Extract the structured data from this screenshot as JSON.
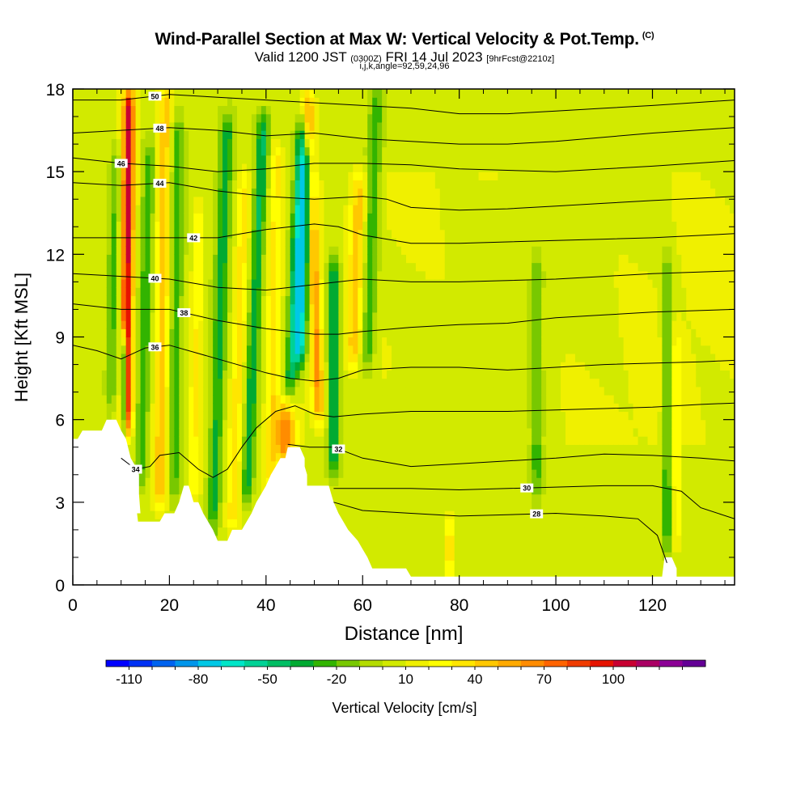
{
  "header": {
    "title": "Wind-Parallel Section at Max W: Vertical Velocity & Pot.Temp.",
    "copyright": "(C)",
    "valid_prefix": "Valid 1200 JST",
    "valid_utc": "(0300Z)",
    "valid_date": "FRI 14 Jul 2023",
    "forecast": "[9hrFcst@2210z]",
    "indices": "i,j,k,angle=92,59,24,96"
  },
  "colorbar": {
    "label": "Vertical Velocity [cm/s]",
    "tick_labels": [
      "-110",
      "-80",
      "-50",
      "-20",
      "10",
      "40",
      "70",
      "100"
    ],
    "colors": [
      "#0000ff",
      "#0032f5",
      "#0064f0",
      "#0096eb",
      "#00c8e6",
      "#00e6c8",
      "#00d296",
      "#00be64",
      "#00aa32",
      "#32b400",
      "#78c800",
      "#b4dc00",
      "#d2ea00",
      "#f0f000",
      "#ffff00",
      "#ffe600",
      "#ffc800",
      "#ffaa00",
      "#ff8c00",
      "#ff6400",
      "#f03c00",
      "#e61400",
      "#c80032",
      "#aa0064",
      "#8c0096",
      "#640096"
    ]
  },
  "chart_data": {
    "type": "heatmap",
    "xlabel": "Distance [nm]",
    "ylabel": "Height [Kft MSL]",
    "xlim": [
      0,
      137
    ],
    "ylim": [
      0,
      18
    ],
    "x_ticks": [
      "0",
      "20",
      "40",
      "60",
      "80",
      "100",
      "120"
    ],
    "y_ticks": [
      "0",
      "3",
      "6",
      "9",
      "12",
      "15",
      "18"
    ],
    "field": "Vertical Velocity [cm/s]",
    "contour_field": "Potential temperature",
    "terrain": [
      [
        0,
        5.3
      ],
      [
        1,
        5.3
      ],
      [
        2,
        5.6
      ],
      [
        3,
        5.6
      ],
      [
        6,
        5.6
      ],
      [
        7,
        6.0
      ],
      [
        9,
        6.0
      ],
      [
        10,
        5.6
      ],
      [
        11,
        5.3
      ],
      [
        12,
        4.6
      ],
      [
        13,
        4.3
      ],
      [
        13.7,
        4.0
      ],
      [
        13.7,
        3.3
      ],
      [
        14,
        2.6
      ],
      [
        13.3,
        2.6
      ],
      [
        13.5,
        2.3
      ],
      [
        18,
        2.3
      ],
      [
        19,
        2.6
      ],
      [
        21,
        2.6
      ],
      [
        22,
        3.0
      ],
      [
        23,
        3.6
      ],
      [
        24,
        3.6
      ],
      [
        25,
        3.0
      ],
      [
        26,
        3.0
      ],
      [
        27,
        2.6
      ],
      [
        28,
        2.3
      ],
      [
        29,
        2.0
      ],
      [
        30,
        1.6
      ],
      [
        32,
        1.6
      ],
      [
        33,
        2.0
      ],
      [
        35,
        2.0
      ],
      [
        36,
        2.3
      ],
      [
        37,
        2.6
      ],
      [
        38,
        3.0
      ],
      [
        39,
        3.3
      ],
      [
        40,
        3.6
      ],
      [
        41,
        4.0
      ],
      [
        42,
        4.3
      ],
      [
        43,
        4.6
      ],
      [
        44,
        4.6
      ],
      [
        44.5,
        5.0
      ],
      [
        47,
        5.0
      ],
      [
        48,
        4.6
      ],
      [
        48,
        4.3
      ],
      [
        48.5,
        4.0
      ],
      [
        48.5,
        3.6
      ],
      [
        53,
        3.6
      ],
      [
        53.5,
        3.3
      ],
      [
        54,
        3.0
      ],
      [
        55,
        2.6
      ],
      [
        56,
        2.3
      ],
      [
        57,
        2.0
      ],
      [
        59,
        1.6
      ],
      [
        60,
        1.3
      ],
      [
        61,
        1.0
      ],
      [
        62,
        0.6
      ],
      [
        69,
        0.6
      ],
      [
        70,
        0.3
      ],
      [
        122,
        0.3
      ],
      [
        122.5,
        1.0
      ],
      [
        124,
        1.0
      ],
      [
        125,
        0.6
      ],
      [
        125,
        0.3
      ],
      [
        137,
        0.3
      ]
    ],
    "theta_contours": [
      {
        "label": "28",
        "label_x": 96,
        "points": [
          [
            54,
            3.0
          ],
          [
            60,
            2.7
          ],
          [
            70,
            2.6
          ],
          [
            80,
            2.5
          ],
          [
            90,
            2.55
          ],
          [
            100,
            2.6
          ],
          [
            110,
            2.5
          ],
          [
            117,
            2.4
          ],
          [
            121,
            1.8
          ],
          [
            123,
            0.8
          ]
        ]
      },
      {
        "label": "30",
        "label_x": 94,
        "points": [
          [
            54,
            3.5
          ],
          [
            60,
            3.5
          ],
          [
            70,
            3.5
          ],
          [
            80,
            3.45
          ],
          [
            90,
            3.5
          ],
          [
            100,
            3.55
          ],
          [
            110,
            3.6
          ],
          [
            120,
            3.6
          ],
          [
            126,
            3.4
          ],
          [
            130,
            2.8
          ],
          [
            137,
            2.4
          ]
        ]
      },
      {
        "label": "32",
        "label_x": 55,
        "points": [
          [
            44.5,
            5.1
          ],
          [
            49,
            5.0
          ],
          [
            54,
            5.0
          ],
          [
            60,
            4.6
          ],
          [
            70,
            4.3
          ],
          [
            80,
            4.4
          ],
          [
            90,
            4.5
          ],
          [
            100,
            4.6
          ],
          [
            110,
            4.75
          ],
          [
            120,
            4.7
          ],
          [
            130,
            4.6
          ],
          [
            137,
            4.5
          ]
        ]
      },
      {
        "label": "34",
        "label_x": 13,
        "points": [
          [
            10,
            4.6
          ],
          [
            13,
            4.2
          ],
          [
            16,
            4.3
          ],
          [
            18,
            4.7
          ],
          [
            22,
            4.8
          ],
          [
            26,
            4.2
          ],
          [
            29,
            3.9
          ],
          [
            32,
            4.2
          ],
          [
            35,
            5.0
          ],
          [
            38,
            5.7
          ],
          [
            42,
            6.3
          ],
          [
            46,
            6.5
          ],
          [
            50,
            6.2
          ],
          [
            54,
            6.1
          ],
          [
            60,
            6.2
          ],
          [
            70,
            6.3
          ],
          [
            80,
            6.3
          ],
          [
            90,
            6.3
          ],
          [
            100,
            6.35
          ],
          [
            110,
            6.4
          ],
          [
            120,
            6.45
          ],
          [
            130,
            6.55
          ],
          [
            137,
            6.6
          ]
        ]
      },
      {
        "label": "36",
        "label_x": 17,
        "points": [
          [
            0,
            8.7
          ],
          [
            5,
            8.5
          ],
          [
            10,
            8.2
          ],
          [
            15,
            8.6
          ],
          [
            20,
            8.7
          ],
          [
            30,
            8.2
          ],
          [
            40,
            7.7
          ],
          [
            45,
            7.5
          ],
          [
            50,
            7.4
          ],
          [
            55,
            7.5
          ],
          [
            60,
            7.8
          ],
          [
            70,
            7.9
          ],
          [
            80,
            7.9
          ],
          [
            90,
            7.8
          ],
          [
            100,
            7.9
          ],
          [
            110,
            8.0
          ],
          [
            120,
            8.05
          ],
          [
            130,
            8.1
          ],
          [
            137,
            8.15
          ]
        ]
      },
      {
        "label": "38",
        "label_x": 23,
        "points": [
          [
            0,
            10.2
          ],
          [
            10,
            10.0
          ],
          [
            20,
            10.0
          ],
          [
            30,
            9.6
          ],
          [
            40,
            9.3
          ],
          [
            50,
            9.1
          ],
          [
            55,
            9.1
          ],
          [
            60,
            9.2
          ],
          [
            70,
            9.35
          ],
          [
            80,
            9.45
          ],
          [
            90,
            9.5
          ],
          [
            100,
            9.7
          ],
          [
            110,
            9.8
          ],
          [
            120,
            9.9
          ],
          [
            137,
            10.0
          ]
        ]
      },
      {
        "label": "40",
        "label_x": 17,
        "points": [
          [
            0,
            11.3
          ],
          [
            10,
            11.2
          ],
          [
            20,
            11.1
          ],
          [
            30,
            10.8
          ],
          [
            40,
            10.7
          ],
          [
            50,
            10.9
          ],
          [
            60,
            11.1
          ],
          [
            70,
            11.0
          ],
          [
            80,
            11.0
          ],
          [
            90,
            11.05
          ],
          [
            100,
            11.1
          ],
          [
            110,
            11.2
          ],
          [
            120,
            11.3
          ],
          [
            137,
            11.4
          ]
        ]
      },
      {
        "label": "42",
        "label_x": 25,
        "points": [
          [
            0,
            12.6
          ],
          [
            10,
            12.6
          ],
          [
            20,
            12.6
          ],
          [
            30,
            12.6
          ],
          [
            40,
            12.9
          ],
          [
            50,
            13.1
          ],
          [
            55,
            13.0
          ],
          [
            60,
            12.7
          ],
          [
            70,
            12.4
          ],
          [
            80,
            12.4
          ],
          [
            90,
            12.45
          ],
          [
            100,
            12.5
          ],
          [
            110,
            12.55
          ],
          [
            120,
            12.6
          ],
          [
            137,
            12.75
          ]
        ]
      },
      {
        "label": "44",
        "label_x": 18,
        "points": [
          [
            0,
            14.6
          ],
          [
            10,
            14.5
          ],
          [
            20,
            14.6
          ],
          [
            30,
            14.3
          ],
          [
            40,
            14.1
          ],
          [
            50,
            14.0
          ],
          [
            60,
            14.1
          ],
          [
            65,
            14.0
          ],
          [
            70,
            13.7
          ],
          [
            80,
            13.6
          ],
          [
            90,
            13.65
          ],
          [
            100,
            13.75
          ],
          [
            110,
            13.85
          ],
          [
            120,
            13.95
          ],
          [
            137,
            14.1
          ]
        ]
      },
      {
        "label": "46",
        "label_x": 10,
        "points": [
          [
            0,
            15.5
          ],
          [
            10,
            15.3
          ],
          [
            20,
            15.2
          ],
          [
            30,
            15.0
          ],
          [
            40,
            15.1
          ],
          [
            50,
            15.3
          ],
          [
            60,
            15.3
          ],
          [
            70,
            15.25
          ],
          [
            80,
            15.1
          ],
          [
            90,
            15.05
          ],
          [
            100,
            15.0
          ],
          [
            110,
            15.1
          ],
          [
            120,
            15.2
          ],
          [
            137,
            15.4
          ]
        ]
      },
      {
        "label": "48",
        "label_x": 18,
        "points": [
          [
            0,
            16.4
          ],
          [
            10,
            16.5
          ],
          [
            20,
            16.6
          ],
          [
            30,
            16.5
          ],
          [
            40,
            16.3
          ],
          [
            50,
            16.4
          ],
          [
            60,
            16.2
          ],
          [
            70,
            16.1
          ],
          [
            80,
            16.0
          ],
          [
            90,
            16.0
          ],
          [
            100,
            16.1
          ],
          [
            110,
            16.25
          ],
          [
            120,
            16.4
          ],
          [
            137,
            16.6
          ]
        ]
      },
      {
        "label": "50",
        "label_x": 17,
        "points": [
          [
            0,
            17.6
          ],
          [
            10,
            17.6
          ],
          [
            20,
            17.8
          ],
          [
            30,
            17.7
          ],
          [
            40,
            17.6
          ],
          [
            50,
            17.5
          ],
          [
            60,
            17.4
          ],
          [
            70,
            17.3
          ],
          [
            80,
            17.1
          ],
          [
            90,
            17.1
          ],
          [
            100,
            17.2
          ],
          [
            110,
            17.3
          ],
          [
            120,
            17.4
          ],
          [
            137,
            17.6
          ]
        ]
      }
    ],
    "velocity_features": [
      {
        "x": 11,
        "y0": 5.5,
        "y1": 18,
        "halfwidth": 1.3,
        "value": 100,
        "slant": 0.05
      },
      {
        "x": 10.5,
        "y0": 5.5,
        "y1": 9,
        "halfwidth": 0.7,
        "value": -100,
        "slant": 0.0
      },
      {
        "x": 8,
        "y0": 6.5,
        "y1": 16,
        "halfwidth": 1.2,
        "value": -25,
        "slant": 0.1
      },
      {
        "x": 14,
        "y0": 3.5,
        "y1": 16,
        "halfwidth": 1.3,
        "value": -30,
        "slant": 0.15
      },
      {
        "x": 18,
        "y0": 3.0,
        "y1": 18,
        "halfwidth": 1.4,
        "value": 45,
        "slant": 0.08
      },
      {
        "x": 21,
        "y0": 3.0,
        "y1": 17,
        "halfwidth": 1.3,
        "value": -30,
        "slant": 0.05
      },
      {
        "x": 25,
        "y0": 3.0,
        "y1": 14,
        "halfwidth": 1.2,
        "value": 25,
        "slant": 0.1
      },
      {
        "x": 29,
        "y0": 2.0,
        "y1": 17,
        "halfwidth": 1.4,
        "value": -40,
        "slant": 0.2
      },
      {
        "x": 33,
        "y0": 2.0,
        "y1": 15,
        "halfwidth": 1.3,
        "value": 30,
        "slant": 0.2
      },
      {
        "x": 36,
        "y0": 3.0,
        "y1": 17,
        "halfwidth": 1.3,
        "value": -45,
        "slant": 0.25
      },
      {
        "x": 41,
        "y0": 3.5,
        "y1": 16,
        "halfwidth": 1.3,
        "value": 30,
        "slant": 0.1
      },
      {
        "x": 44,
        "y0": 4.5,
        "y1": 6.5,
        "halfwidth": 2.0,
        "value": 65,
        "slant": 0.0
      },
      {
        "x": 45,
        "y0": 7.0,
        "y1": 17,
        "halfwidth": 1.3,
        "value": -50,
        "slant": 0.25
      },
      {
        "x": 47,
        "y0": 8.0,
        "y1": 16,
        "halfwidth": 1.4,
        "value": -70,
        "slant": 0.2
      },
      {
        "x": 51,
        "y0": 6.0,
        "y1": 18,
        "halfwidth": 1.3,
        "value": 55,
        "slant": -0.2
      },
      {
        "x": 54,
        "y0": 4.0,
        "y1": 12,
        "halfwidth": 1.3,
        "value": -45,
        "slant": 0.0
      },
      {
        "x": 58,
        "y0": 8.0,
        "y1": 15,
        "halfwidth": 1.6,
        "value": 40,
        "slant": 0.2
      },
      {
        "x": 61,
        "y0": 8.0,
        "y1": 18,
        "halfwidth": 1.6,
        "value": -35,
        "slant": 0.2
      },
      {
        "x": 78,
        "y0": 0.3,
        "y1": 2.4,
        "halfwidth": 0.7,
        "value": 45,
        "slant": 0.0
      },
      {
        "x": 96,
        "y0": 3.0,
        "y1": 12,
        "halfwidth": 1.3,
        "value": -30,
        "slant": 0.0
      },
      {
        "x": 123,
        "y0": 1.2,
        "y1": 12,
        "halfwidth": 0.9,
        "value": -35,
        "slant": 0.0
      },
      {
        "x": 125,
        "y0": 1.2,
        "y1": 9,
        "halfwidth": 0.8,
        "value": 25,
        "slant": 0.0
      }
    ]
  }
}
